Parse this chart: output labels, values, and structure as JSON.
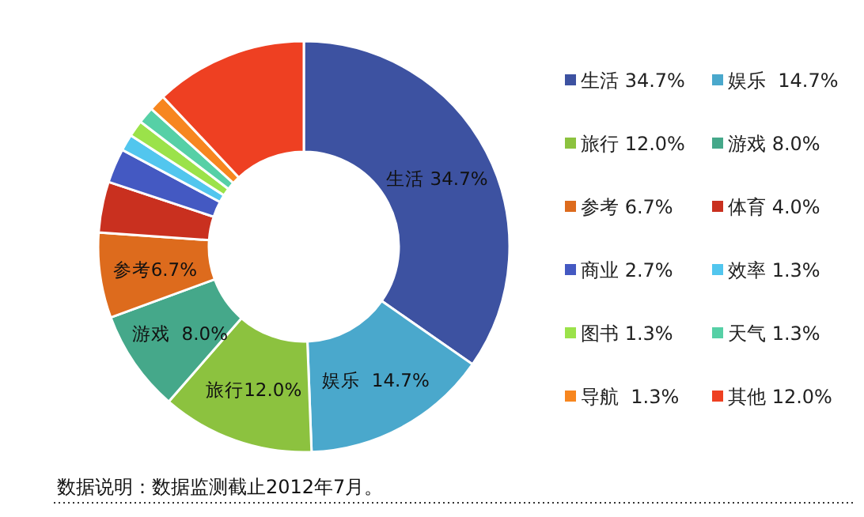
{
  "chart_data": {
    "type": "donut",
    "categories": [
      "生活 34.7%",
      "娱乐  14.7%",
      "旅行 12.0%",
      "游戏 8.0%",
      "参考 6.7%",
      "体育 4.0%",
      "商业 2.7%",
      "效率 1.3%",
      "图书 1.3%",
      "天气 1.3%",
      "导航  1.3%",
      "其他 12.0%"
    ],
    "values": [
      34.7,
      14.7,
      12.0,
      8.0,
      6.7,
      4.0,
      2.7,
      1.3,
      1.3,
      1.3,
      1.3,
      12.0
    ],
    "colors": [
      "#3d52a1",
      "#4aa8cc",
      "#8cc23f",
      "#45a88a",
      "#dd6b1d",
      "#c9301f",
      "#4459c2",
      "#52c6ee",
      "#9be24a",
      "#56d0a6",
      "#f7861f",
      "#ee4022"
    ],
    "value_labels": [
      "生活 34.7%",
      "娱乐  14.7%",
      "旅行12.0%",
      "游戏  8.0%",
      "参考6.7%",
      null,
      null,
      null,
      null,
      null,
      null,
      null
    ],
    "legend": "right",
    "annotations": [
      "数据说明：数据监测截止2012年7月。"
    ]
  }
}
